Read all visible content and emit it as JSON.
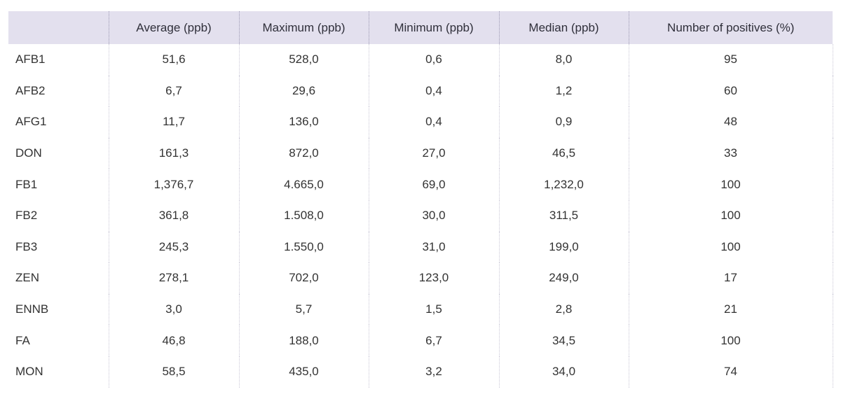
{
  "table": {
    "headers": [
      "",
      "Average (ppb)",
      "Maximum (ppb)",
      "Minimum (ppb)",
      "Median (ppb)",
      "Number of positives (%)"
    ],
    "rows": [
      [
        "AFB1",
        "51,6",
        "528,0",
        "0,6",
        "8,0",
        "95"
      ],
      [
        "AFB2",
        "6,7",
        "29,6",
        "0,4",
        "1,2",
        "60"
      ],
      [
        "AFG1",
        "11,7",
        "136,0",
        "0,4",
        "0,9",
        "48"
      ],
      [
        "DON",
        "161,3",
        "872,0",
        "27,0",
        "46,5",
        "33"
      ],
      [
        "FB1",
        "1,376,7",
        "4.665,0",
        "69,0",
        "1,232,0",
        "100"
      ],
      [
        "FB2",
        "361,8",
        "1.508,0",
        "30,0",
        "311,5",
        "100"
      ],
      [
        "FB3",
        "245,3",
        "1.550,0",
        "31,0",
        "199,0",
        "100"
      ],
      [
        "ZEN",
        "278,1",
        "702,0",
        "123,0",
        "249,0",
        "17"
      ],
      [
        "ENNB",
        "3,0",
        "5,7",
        "1,5",
        "2,8",
        "21"
      ],
      [
        "FA",
        "46,8",
        "188,0",
        "6,7",
        "34,5",
        "100"
      ],
      [
        "MON",
        "58,5",
        "435,0",
        "3,2",
        "34,0",
        "74"
      ]
    ]
  },
  "colors": {
    "header_background": "#e3e0ee",
    "text": "#333333"
  }
}
